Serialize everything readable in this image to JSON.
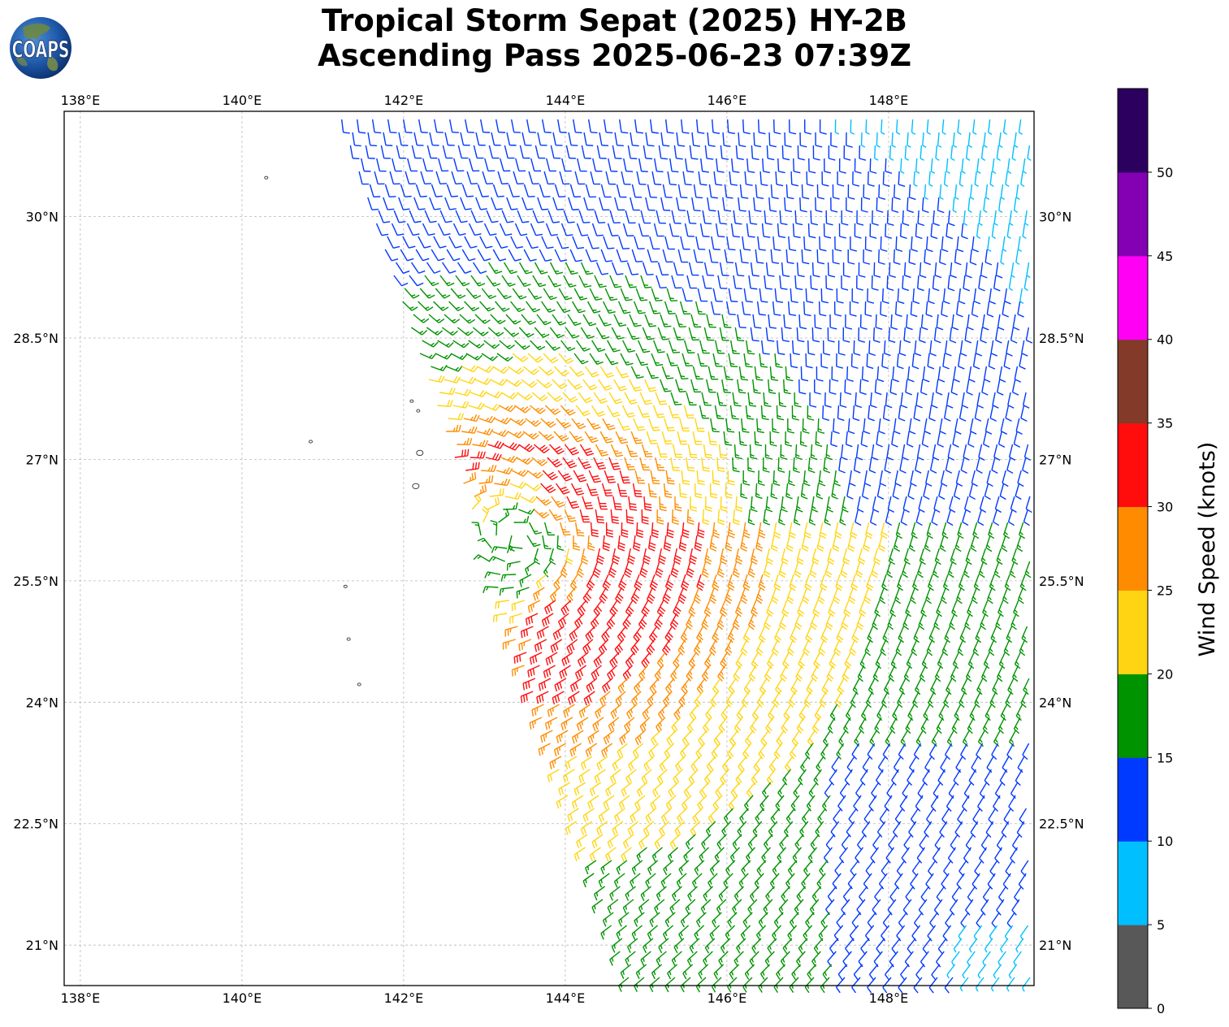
{
  "title_line1": "Tropical Storm Sepat (2025) HY-2B",
  "title_line2": "Ascending Pass 2025-06-23 07:39Z",
  "logo_text": "COAPS",
  "map": {
    "lon_range": [
      137.8,
      149.8
    ],
    "lat_range": [
      20.5,
      31.3
    ],
    "lon_ticks": [
      {
        "value": 138,
        "label": "138°E"
      },
      {
        "value": 140,
        "label": "140°E"
      },
      {
        "value": 142,
        "label": "142°E"
      },
      {
        "value": 144,
        "label": "144°E"
      },
      {
        "value": 146,
        "label": "146°E"
      },
      {
        "value": 148,
        "label": "148°E"
      }
    ],
    "lat_ticks": [
      {
        "value": 30,
        "label": "30°N"
      },
      {
        "value": 28.5,
        "label": "28.5°N"
      },
      {
        "value": 27,
        "label": "27°N"
      },
      {
        "value": 25.5,
        "label": "25.5°N"
      },
      {
        "value": 24,
        "label": "24°N"
      },
      {
        "value": 22.5,
        "label": "22.5°N"
      },
      {
        "value": 21,
        "label": "21°N"
      }
    ],
    "storm_center": {
      "lon": 143.6,
      "lat": 25.9
    },
    "islands": [
      {
        "lon": 140.3,
        "lat": 30.48
      },
      {
        "lon": 140.85,
        "lat": 27.22
      },
      {
        "lon": 142.1,
        "lat": 27.72
      },
      {
        "lon": 142.18,
        "lat": 27.6
      },
      {
        "lon": 142.2,
        "lat": 27.08
      },
      {
        "lon": 142.15,
        "lat": 26.67
      },
      {
        "lon": 141.28,
        "lat": 25.43
      },
      {
        "lon": 141.32,
        "lat": 24.78
      },
      {
        "lon": 141.45,
        "lat": 24.22
      }
    ]
  },
  "colorbar": {
    "label": "Wind Speed (knots)",
    "ticks": [
      "0",
      "5",
      "10",
      "15",
      "20",
      "25",
      "30",
      "35",
      "40",
      "45",
      "50"
    ],
    "bins": [
      {
        "min": 0,
        "max": 5,
        "color": "#585858"
      },
      {
        "min": 5,
        "max": 10,
        "color": "#00bfff"
      },
      {
        "min": 10,
        "max": 15,
        "color": "#0039ff"
      },
      {
        "min": 15,
        "max": 20,
        "color": "#009300"
      },
      {
        "min": 20,
        "max": 25,
        "color": "#ffd513"
      },
      {
        "min": 25,
        "max": 30,
        "color": "#ff8c00"
      },
      {
        "min": 30,
        "max": 35,
        "color": "#ff0d0d"
      },
      {
        "min": 35,
        "max": 40,
        "color": "#833a28"
      },
      {
        "min": 40,
        "max": 45,
        "color": "#ff00f5"
      },
      {
        "min": 45,
        "max": 50,
        "color": "#8300b3"
      },
      {
        "min": 50,
        "max": 55,
        "color": "#2b005f"
      }
    ]
  }
}
